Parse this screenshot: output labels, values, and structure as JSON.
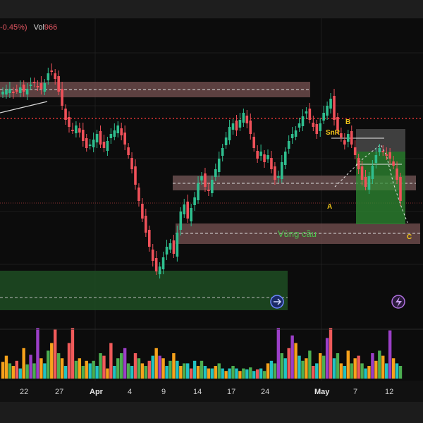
{
  "legend": {
    "change": "-0.45%)",
    "vol_label": "Vol",
    "vol_value": "966"
  },
  "colors": {
    "up": "#2fbf8f",
    "down": "#f0515a",
    "resistance_line": "#e03535",
    "zone_fill": "#6b4a4a",
    "zone_green": "#1f4d23",
    "vol_orange": "#f7a21b",
    "vol_green": "#4caf50",
    "vol_red": "#f05a5a",
    "vol_teal": "#22c3c3",
    "vol_purple": "#9c3fc8"
  },
  "chart_data": {
    "type": "candlestick",
    "x_tick_labels": [
      "22",
      "27",
      "Apr",
      "4",
      "9",
      "14",
      "17",
      "24",
      "May",
      "7",
      "12"
    ],
    "bold_ticks": [
      "Apr",
      "May"
    ],
    "annotations": {
      "zone_label": "Vùng cầu",
      "snr_label": "SnR",
      "point_a": "A",
      "point_b": "B",
      "point_c": "C"
    },
    "candles": [
      [
        0,
        1
      ],
      [
        0,
        1
      ],
      [
        0,
        1
      ],
      [
        0,
        1
      ],
      [
        0,
        0
      ],
      [
        1,
        1
      ],
      [
        1,
        0
      ],
      [
        0,
        1
      ],
      [
        1,
        0
      ],
      [
        0,
        0
      ],
      [
        1,
        1
      ],
      [
        0,
        0
      ],
      [
        1,
        1
      ],
      [
        0,
        0
      ],
      [
        1,
        0
      ],
      [
        0,
        1
      ],
      [
        0,
        0
      ],
      [
        1,
        0
      ],
      [
        1,
        1
      ],
      [
        0,
        0
      ],
      [
        1,
        1
      ],
      [
        1,
        1
      ],
      [
        0,
        1
      ],
      [
        0,
        0
      ],
      [
        1,
        0
      ],
      [
        0,
        0
      ],
      [
        1,
        1
      ],
      [
        0,
        1
      ],
      [
        1,
        0
      ],
      [
        0,
        0
      ],
      [
        1,
        1
      ],
      [
        0,
        0
      ],
      [
        1,
        1
      ],
      [
        0,
        1
      ],
      [
        1,
        1
      ],
      [
        0,
        0
      ],
      [
        0,
        1
      ],
      [
        1,
        1
      ],
      [
        1,
        0
      ],
      [
        0,
        1
      ],
      [
        0,
        1
      ],
      [
        1,
        0
      ],
      [
        0,
        0
      ],
      [
        1,
        1
      ],
      [
        0,
        0
      ],
      [
        1,
        1
      ],
      [
        1,
        1
      ],
      [
        1,
        0
      ],
      [
        0,
        1
      ],
      [
        0,
        0
      ],
      [
        1,
        1
      ],
      [
        1,
        0
      ],
      [
        0,
        1
      ],
      [
        0,
        0
      ],
      [
        1,
        1
      ],
      [
        1,
        0
      ],
      [
        0,
        1
      ],
      [
        1,
        0
      ],
      [
        0,
        0
      ],
      [
        1,
        1
      ],
      [
        0,
        1
      ],
      [
        1,
        0
      ],
      [
        1,
        1
      ],
      [
        0,
        0
      ],
      [
        1,
        0
      ],
      [
        0,
        1
      ],
      [
        1,
        1
      ],
      [
        0,
        0
      ],
      [
        1,
        0
      ],
      [
        0,
        1
      ],
      [
        1,
        1
      ],
      [
        0,
        0
      ],
      [
        1,
        1
      ],
      [
        0,
        1
      ],
      [
        1,
        0
      ],
      [
        1,
        1
      ],
      [
        0,
        0
      ],
      [
        1,
        1
      ],
      [
        0,
        0
      ],
      [
        1,
        0
      ],
      [
        0,
        1
      ],
      [
        1,
        1
      ],
      [
        0,
        0
      ],
      [
        1,
        0
      ],
      [
        0,
        1
      ],
      [
        0,
        0
      ],
      [
        1,
        1
      ],
      [
        0,
        0
      ],
      [
        1,
        0
      ],
      [
        1,
        1
      ],
      [
        0,
        0
      ],
      [
        1,
        0
      ],
      [
        0,
        0
      ],
      [
        1,
        1
      ],
      [
        0,
        1
      ],
      [
        1,
        0
      ],
      [
        0,
        0
      ],
      [
        1,
        1
      ],
      [
        0,
        1
      ],
      [
        1,
        0
      ],
      [
        0,
        0
      ],
      [
        1,
        1
      ],
      [
        0,
        1
      ],
      [
        1,
        0
      ],
      [
        0,
        0
      ],
      [
        1,
        1
      ],
      [
        0,
        1
      ],
      [
        1,
        0
      ],
      [
        0,
        0
      ],
      [
        1,
        1
      ],
      [
        0,
        1
      ],
      [
        0,
        0
      ],
      [
        1,
        1
      ],
      [
        0,
        1
      ],
      [
        1,
        0
      ]
    ],
    "volume": [
      [
        "o",
        0.33
      ],
      [
        "o",
        0.45
      ],
      [
        "g",
        0.3
      ],
      [
        "o",
        0.25
      ],
      [
        "r",
        0.35
      ],
      [
        "t",
        0.2
      ],
      [
        "o",
        0.6
      ],
      [
        "g",
        0.28
      ],
      [
        "p",
        0.47
      ],
      [
        "g",
        0.3
      ],
      [
        "p",
        1.0
      ],
      [
        "o",
        0.4
      ],
      [
        "t",
        0.3
      ],
      [
        "g",
        0.55
      ],
      [
        "o",
        0.7
      ],
      [
        "r",
        0.98
      ],
      [
        "g",
        0.5
      ],
      [
        "o",
        0.4
      ],
      [
        "t",
        0.25
      ],
      [
        "r",
        0.7
      ],
      [
        "r",
        1.0
      ],
      [
        "g",
        0.35
      ],
      [
        "o",
        0.4
      ],
      [
        "g",
        0.25
      ],
      [
        "o",
        0.35
      ],
      [
        "t",
        0.3
      ],
      [
        "g",
        0.35
      ],
      [
        "t",
        0.25
      ],
      [
        "g",
        0.5
      ],
      [
        "r",
        0.45
      ],
      [
        "o",
        0.2
      ],
      [
        "r",
        0.7
      ],
      [
        "t",
        0.25
      ],
      [
        "g",
        0.4
      ],
      [
        "g",
        0.5
      ],
      [
        "p",
        0.6
      ],
      [
        "g",
        0.3
      ],
      [
        "t",
        0.25
      ],
      [
        "r",
        0.5
      ],
      [
        "g",
        0.4
      ],
      [
        "o",
        0.3
      ],
      [
        "g",
        0.25
      ],
      [
        "r",
        0.35
      ],
      [
        "t",
        0.45
      ],
      [
        "o",
        0.6
      ],
      [
        "p",
        0.45
      ],
      [
        "o",
        0.4
      ],
      [
        "t",
        0.25
      ],
      [
        "g",
        0.35
      ],
      [
        "o",
        0.5
      ],
      [
        "t",
        0.35
      ],
      [
        "o",
        0.25
      ],
      [
        "g",
        0.3
      ],
      [
        "t",
        0.3
      ],
      [
        "r",
        0.2
      ],
      [
        "t",
        0.35
      ],
      [
        "o",
        0.25
      ],
      [
        "g",
        0.35
      ],
      [
        "t",
        0.25
      ],
      [
        "o",
        0.2
      ],
      [
        "t",
        0.2
      ],
      [
        "o",
        0.25
      ],
      [
        "g",
        0.3
      ],
      [
        "t",
        0.2
      ],
      [
        "o",
        0.15
      ],
      [
        "t",
        0.2
      ],
      [
        "g",
        0.25
      ],
      [
        "t",
        0.2
      ],
      [
        "o",
        0.15
      ],
      [
        "g",
        0.2
      ],
      [
        "t",
        0.18
      ],
      [
        "g",
        0.22
      ],
      [
        "t",
        0.15
      ],
      [
        "r",
        0.18
      ],
      [
        "t",
        0.2
      ],
      [
        "g",
        0.15
      ],
      [
        "o",
        0.3
      ],
      [
        "t",
        0.35
      ],
      [
        "g",
        0.3
      ],
      [
        "p",
        1.0
      ],
      [
        "g",
        0.5
      ],
      [
        "t",
        0.4
      ],
      [
        "r",
        0.6
      ],
      [
        "p",
        0.85
      ],
      [
        "o",
        0.7
      ],
      [
        "t",
        0.45
      ],
      [
        "g",
        0.35
      ],
      [
        "o",
        0.4
      ],
      [
        "g",
        0.55
      ],
      [
        "r",
        0.25
      ],
      [
        "t",
        0.3
      ],
      [
        "o",
        0.5
      ],
      [
        "g",
        0.45
      ],
      [
        "p",
        0.8
      ],
      [
        "r",
        1.0
      ],
      [
        "t",
        0.4
      ],
      [
        "g",
        0.5
      ],
      [
        "o",
        0.3
      ],
      [
        "t",
        0.25
      ],
      [
        "o",
        0.55
      ],
      [
        "g",
        0.3
      ],
      [
        "o",
        0.4
      ],
      [
        "r",
        0.45
      ],
      [
        "g",
        0.3
      ],
      [
        "t",
        0.2
      ],
      [
        "o",
        0.25
      ],
      [
        "p",
        0.5
      ],
      [
        "o",
        0.35
      ],
      [
        "g",
        0.55
      ],
      [
        "o",
        0.45
      ],
      [
        "t",
        0.3
      ],
      [
        "p",
        0.95
      ],
      [
        "o",
        0.4
      ],
      [
        "t",
        0.3
      ],
      [
        "g",
        0.25
      ]
    ]
  }
}
